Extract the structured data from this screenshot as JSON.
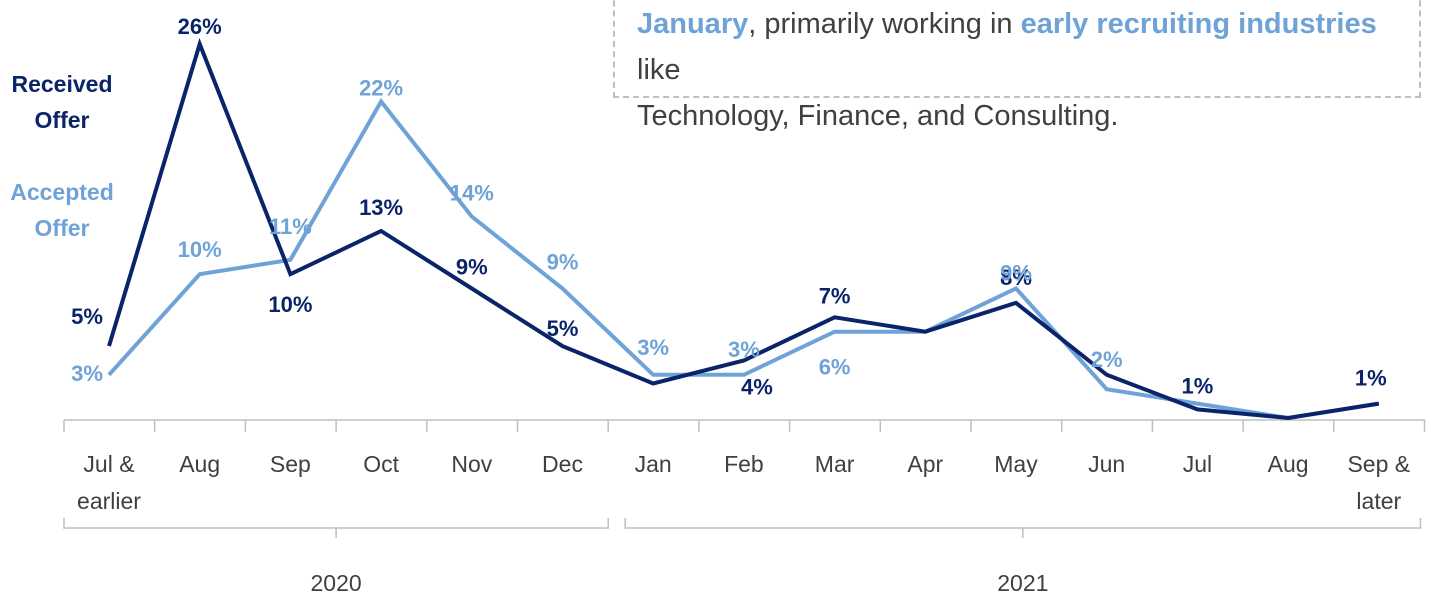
{
  "callout": {
    "line1_highlight": "January",
    "line1_text": ", primarily working in ",
    "line1_highlight2": "early recruiting industries",
    "line1_tail": " like",
    "line2": "Technology, Finance, and Consulting."
  },
  "colors": {
    "received": "#0a2469",
    "accepted": "#6fa3d8",
    "axis": "#bfbfbf",
    "tick_text": "#404040"
  },
  "chart_data": {
    "type": "line",
    "title": "",
    "xlabel": "",
    "ylabel": "",
    "categories": [
      "Jul & earlier",
      "Aug",
      "Sep",
      "Oct",
      "Nov",
      "Dec",
      "Jan",
      "Feb",
      "Mar",
      "Apr",
      "May",
      "Jun",
      "Jul",
      "Aug",
      "Sep & later"
    ],
    "category_lines": [
      [
        "Jul &",
        "earlier"
      ],
      [
        "Aug"
      ],
      [
        "Sep"
      ],
      [
        "Oct"
      ],
      [
        "Nov"
      ],
      [
        "Dec"
      ],
      [
        "Jan"
      ],
      [
        "Feb"
      ],
      [
        "Mar"
      ],
      [
        "Apr"
      ],
      [
        "May"
      ],
      [
        "Jun"
      ],
      [
        "Jul"
      ],
      [
        "Aug"
      ],
      [
        "Sep &",
        "later"
      ]
    ],
    "groups": [
      {
        "label": "2020",
        "from": 0,
        "to": 5
      },
      {
        "label": "2021",
        "from": 6,
        "to": 14
      }
    ],
    "ylim": [
      0,
      26
    ],
    "grid": false,
    "legend_placement": "left",
    "series": [
      {
        "name": "Received Offer",
        "values": [
          5,
          26,
          10,
          13,
          9,
          5,
          2.4,
          4,
          7,
          6,
          8,
          3,
          0.6,
          0,
          1
        ],
        "labels": [
          "5%",
          "26%",
          "10%",
          "13%",
          "9%",
          "5%",
          "",
          "4%",
          "7%",
          "",
          "8%",
          "",
          "1%",
          "",
          "1%"
        ]
      },
      {
        "name": "Accepted Offer",
        "values": [
          3,
          10,
          11,
          22,
          14,
          9,
          3,
          3,
          6,
          6,
          9,
          2,
          1,
          0,
          1
        ],
        "labels": [
          "3%",
          "10%",
          "11%",
          "22%",
          "14%",
          "9%",
          "3%",
          "3%",
          "6%",
          "",
          "9%",
          "2%",
          "",
          "",
          ""
        ]
      }
    ]
  }
}
